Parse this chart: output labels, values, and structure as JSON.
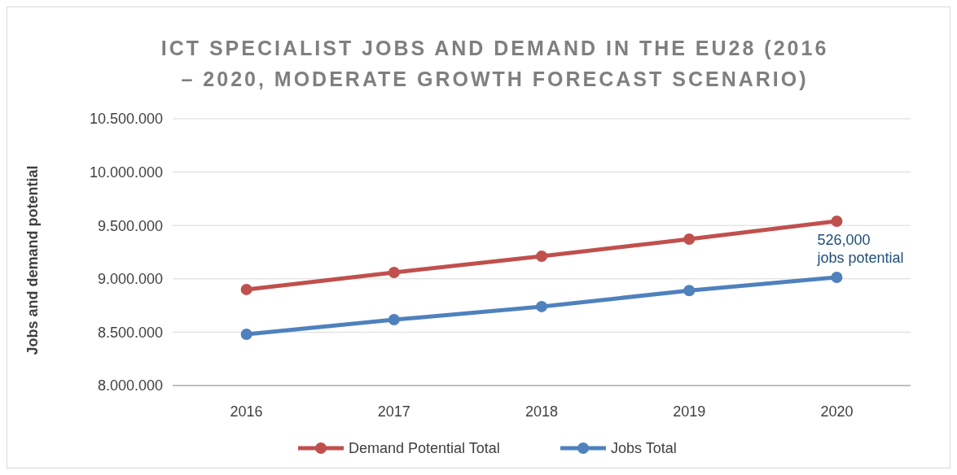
{
  "chart_data": {
    "type": "line",
    "title": "ICT SPECIALIST JOBS AND DEMAND IN THE EU28 (2016 – 2020, MODERATE GROWTH FORECAST SCENARIO)",
    "ylabel": "Jobs and demand potential",
    "categories": [
      "2016",
      "2017",
      "2018",
      "2019",
      "2020"
    ],
    "series": [
      {
        "name": "Demand Potential Total",
        "color": "#c0504d",
        "values": [
          8900000,
          9060000,
          9212000,
          9372000,
          9540000
        ]
      },
      {
        "name": "Jobs Total",
        "color": "#4f81bd",
        "values": [
          8480000,
          8617000,
          8740000,
          8890000,
          9014000
        ]
      }
    ],
    "ylim": [
      8000000,
      10500000
    ],
    "yticks": [
      {
        "value": 8000000,
        "label": "8.000.000"
      },
      {
        "value": 8500000,
        "label": "8.500.000"
      },
      {
        "value": 9000000,
        "label": "9.000.000"
      },
      {
        "value": 9500000,
        "label": "9.500.000"
      },
      {
        "value": 10000000,
        "label": "10.000.000"
      },
      {
        "value": 10500000,
        "label": "10.500.000"
      }
    ],
    "grid": "y",
    "legend": "bottom",
    "marker": "circle",
    "line_style": "solid",
    "annotations": [
      {
        "text": "526,000 jobs potential",
        "x": "2020",
        "y": 9014000
      }
    ]
  }
}
